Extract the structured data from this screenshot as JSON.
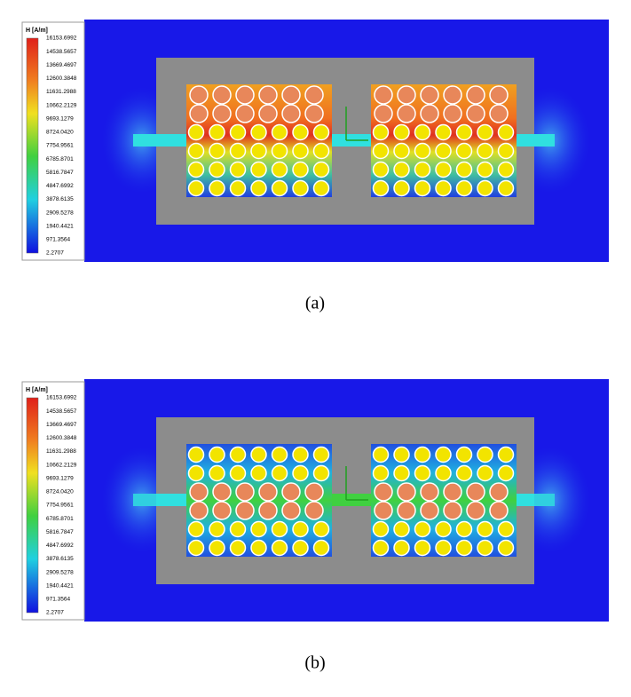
{
  "panels": [
    {
      "legend": {
        "title": "H [A/m]",
        "labels": [
          "16153.6992",
          "14538.5657",
          "13669.4697",
          "12600.3848",
          "11631.2988",
          "10662.2129",
          "9693.1279",
          "8724.0420",
          "7754.9561",
          "6785.8701",
          "5816.7847",
          "4847.6992",
          "3878.6135",
          "2909.5278",
          "1940.4421",
          "971.3564",
          "2.2707"
        ]
      },
      "caption": "(a)"
    },
    {
      "legend": {
        "title": "H [A/m]",
        "labels": [
          "16153.6992",
          "14538.5657",
          "13669.4697",
          "12600.3848",
          "11631.2988",
          "10662.2129",
          "9693.1279",
          "8724.0420",
          "7754.9561",
          "6785.8701",
          "5816.7847",
          "4847.6992",
          "3878.6135",
          "2909.5278",
          "1940.4421",
          "971.3564",
          "2.2707"
        ]
      },
      "caption": "(b)"
    }
  ]
}
